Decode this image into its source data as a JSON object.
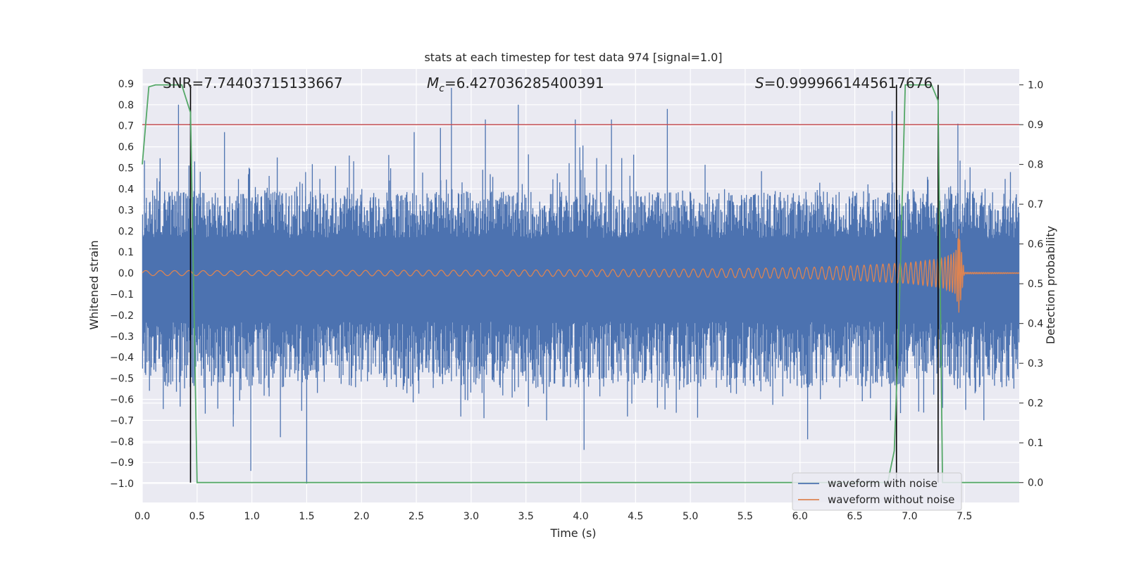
{
  "chart_data": {
    "type": "line",
    "title": "stats at each timestep for test data 974 [signal=1.0]",
    "xlabel": "Time (s)",
    "ylabel": "Whitened strain",
    "y2label": "Detection probability",
    "xlim": [
      0.0,
      8.0
    ],
    "ylim": [
      -1.09,
      0.97
    ],
    "y2lim": [
      -0.05,
      1.04
    ],
    "x_ticks": [
      0.0,
      0.5,
      1.0,
      1.5,
      2.0,
      2.5,
      3.0,
      3.5,
      4.0,
      4.5,
      5.0,
      5.5,
      6.0,
      6.5,
      7.0,
      7.5
    ],
    "x_tick_labels": [
      "0.0",
      "0.5",
      "1.0",
      "1.5",
      "2.0",
      "2.5",
      "3.0",
      "3.5",
      "4.0",
      "4.5",
      "5.0",
      "5.5",
      "6.0",
      "6.5",
      "7.0",
      "7.5"
    ],
    "y_ticks": [
      0.9,
      0.8,
      0.7,
      0.6,
      0.5,
      0.4,
      0.3,
      0.2,
      0.1,
      0.0,
      -0.1,
      -0.2,
      -0.3,
      -0.4,
      -0.5,
      -0.6,
      -0.7,
      -0.8,
      -0.9,
      -1.0
    ],
    "y_tick_labels": [
      "0.9",
      "0.8",
      "0.7",
      "0.6",
      "0.5",
      "0.4",
      "0.3",
      "0.2",
      "0.1",
      "0.0",
      "−0.1",
      "−0.2",
      "−0.3",
      "−0.4",
      "−0.5",
      "−0.6",
      "−0.7",
      "−0.8",
      "−0.9",
      "−1.0"
    ],
    "y2_ticks": [
      1.0,
      0.9,
      0.8,
      0.7,
      0.6,
      0.5,
      0.4,
      0.3,
      0.2,
      0.1,
      0.0
    ],
    "y2_tick_labels": [
      "1.0",
      "0.9",
      "0.8",
      "0.7",
      "0.6",
      "0.5",
      "0.4",
      "0.3",
      "0.2",
      "0.1",
      "0.0"
    ],
    "annotations": {
      "snr": "SNR=7.74403715133667",
      "mc_symbol": "M",
      "mc_subscript": "c",
      "mc_value": "=6.427036285400391",
      "s_symbol": "S",
      "s_value": "=0.9999661445617676"
    },
    "threshold": {
      "value": 0.9,
      "axis": "right",
      "color": "#c44e52"
    },
    "detection_markers_x": [
      0.44,
      6.88,
      7.26
    ],
    "series": [
      {
        "name": "waveform with noise",
        "color": "#4c72b0",
        "description": "noise envelope",
        "envelope_upper_typical": 0.3,
        "envelope_lower_typical": -0.42,
        "spikes": [
          {
            "x": 0.33,
            "y": 0.8
          },
          {
            "x": 0.5,
            "y": 0.33
          },
          {
            "x": 0.75,
            "y": 0.67
          },
          {
            "x": 0.83,
            "y": -0.73
          },
          {
            "x": 0.99,
            "y": -0.94
          },
          {
            "x": 1.26,
            "y": -0.78
          },
          {
            "x": 1.49,
            "y": 0.48
          },
          {
            "x": 1.5,
            "y": -1.0
          },
          {
            "x": 2.48,
            "y": 0.67
          },
          {
            "x": 2.72,
            "y": 0.69
          },
          {
            "x": 2.82,
            "y": 0.88
          },
          {
            "x": 3.13,
            "y": 0.73
          },
          {
            "x": 3.43,
            "y": 0.8
          },
          {
            "x": 3.95,
            "y": 0.73
          },
          {
            "x": 4.03,
            "y": -0.84
          },
          {
            "x": 4.28,
            "y": 0.73
          },
          {
            "x": 4.79,
            "y": 0.78
          },
          {
            "x": 6.07,
            "y": -0.79
          },
          {
            "x": 6.84,
            "y": 0.77
          },
          {
            "x": 6.88,
            "y": -0.82
          },
          {
            "x": 7.44,
            "y": 0.71
          },
          {
            "x": 7.92,
            "y": 0.48
          }
        ]
      },
      {
        "name": "waveform without noise",
        "color": "#dd8452",
        "description": "chirp amplitude envelope",
        "envelope_x": [
          0.0,
          1.0,
          2.0,
          3.0,
          4.0,
          5.0,
          6.0,
          6.5,
          7.0,
          7.3,
          7.42,
          7.45,
          7.5,
          8.0
        ],
        "envelope_amp": [
          0.012,
          0.012,
          0.013,
          0.014,
          0.016,
          0.019,
          0.026,
          0.035,
          0.05,
          0.07,
          0.1,
          0.19,
          0.004,
          0.002
        ],
        "merger_peak": {
          "x": 7.45,
          "y_max": 0.21,
          "y_min": -0.16
        }
      },
      {
        "name": "detection probability",
        "color": "#55a868",
        "axis": "right",
        "x": [
          0.0,
          0.06,
          0.12,
          0.2,
          0.36,
          0.44,
          0.5,
          6.8,
          6.86,
          6.9,
          6.96,
          7.05,
          7.2,
          7.26,
          7.3,
          8.0
        ],
        "values": [
          0.8,
          0.995,
          1.0,
          1.0,
          1.0,
          0.93,
          0.0,
          0.0,
          0.08,
          0.38,
          1.0,
          1.0,
          1.0,
          0.96,
          0.0,
          0.0
        ]
      }
    ],
    "legend": {
      "position": "lower-right",
      "entries": [
        {
          "label": "waveform with noise",
          "color": "#4c72b0"
        },
        {
          "label": "waveform without noise",
          "color": "#dd8452"
        }
      ]
    },
    "style": {
      "background": "#eaeaf2",
      "grid_color": "#ffffff",
      "grid": true,
      "marker_color": "#000000"
    }
  }
}
